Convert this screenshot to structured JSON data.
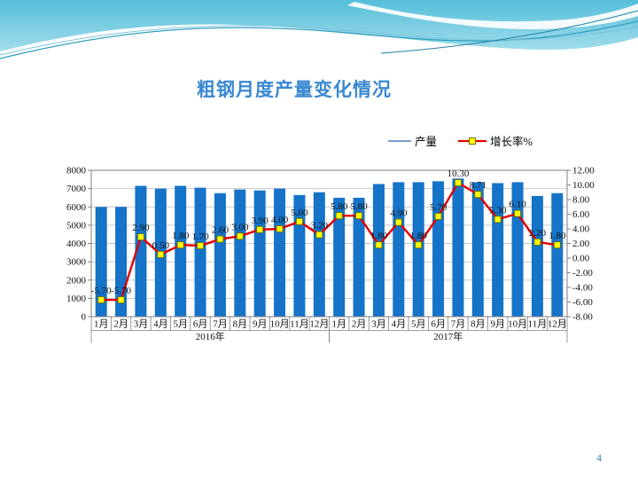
{
  "slide": {
    "title": "粗钢月度产量变化情况",
    "page_number": "4"
  },
  "colors": {
    "title": "#3A89D1",
    "bar": "#1573C8",
    "line": "#E00000",
    "marker_fill": "#FFFF00",
    "marker_border": "#707000",
    "gridline": "#C9C9C9",
    "axis": "#7F7F7F",
    "page_number": "#31849B",
    "legend_bar_sample": "#4A7EBB"
  },
  "chart_data": {
    "type": "combo bar+line",
    "grid": "horizontal gridlines on",
    "legend_position": "top-right",
    "categories": [
      "1月",
      "2月",
      "3月",
      "4月",
      "5月",
      "6月",
      "7月",
      "8月",
      "9月",
      "10月",
      "11月",
      "12月",
      "1月",
      "2月",
      "3月",
      "4月",
      "5月",
      "6月",
      "7月",
      "8月",
      "9月",
      "10月",
      "11月",
      "12月"
    ],
    "year_groups": [
      {
        "label": "2016年",
        "span": 12
      },
      {
        "label": "2017年",
        "span": 12
      }
    ],
    "series": [
      {
        "name": "产量",
        "type": "bar",
        "axis": "left",
        "values": [
          6000,
          6000,
          7150,
          7000,
          7150,
          7050,
          6750,
          6950,
          6900,
          7000,
          6650,
          6800,
          6500,
          6500,
          7250,
          7350,
          7350,
          7400,
          7550,
          7350,
          7300,
          7350,
          6600,
          6750
        ]
      },
      {
        "name": "增长率%",
        "type": "line",
        "axis": "right",
        "values": [
          -5.7,
          -5.7,
          2.9,
          0.5,
          1.8,
          1.7,
          2.6,
          3.0,
          3.9,
          4.0,
          5.0,
          3.2,
          5.8,
          5.8,
          1.8,
          4.9,
          1.8,
          5.7,
          10.3,
          8.71,
          5.3,
          6.1,
          2.2,
          1.8
        ],
        "labels": [
          "-5.70",
          "-5.70",
          "2.90",
          "0.50",
          "1.80",
          "1.70",
          "2.60",
          "3.00",
          "3.90",
          "4.00",
          "5.00",
          "3.20",
          "5.80",
          "5.80",
          "1.80",
          "4.90",
          "1.80",
          "5.70",
          "10.30",
          "8.71",
          "5.30",
          "6.10",
          "2.20",
          "1.80"
        ]
      }
    ],
    "left_axis": {
      "min": 0,
      "max": 8000,
      "ticks": [
        "0",
        "1000",
        "2000",
        "3000",
        "4000",
        "5000",
        "6000",
        "7000",
        "8000"
      ]
    },
    "right_axis": {
      "min": -8,
      "max": 12,
      "ticks": [
        "-8.00",
        "-6.00",
        "-4.00",
        "-2.00",
        "0.00",
        "2.00",
        "4.00",
        "6.00",
        "8.00",
        "10.00",
        "12.00"
      ]
    }
  }
}
